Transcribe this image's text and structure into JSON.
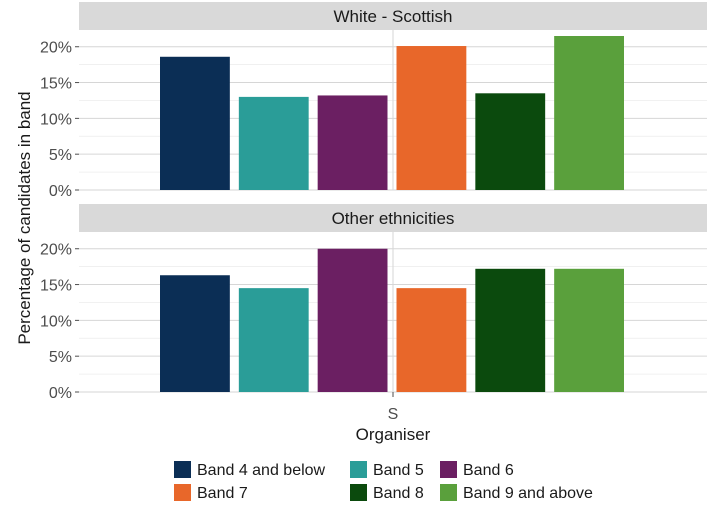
{
  "chart_data": {
    "type": "bar",
    "ylabel": "Percentage of candidates in band",
    "xlabel": "Organiser",
    "x_category": "S",
    "ylim": [
      0,
      0.215
    ],
    "y_ticks": [
      0,
      0.05,
      0.1,
      0.15,
      0.2
    ],
    "y_tick_labels": [
      "0%",
      "5%",
      "10%",
      "15%",
      "20%"
    ],
    "grid": true,
    "legend_position": "bottom",
    "series_names": [
      "Band 4 and below",
      "Band 5",
      "Band 6",
      "Band 7",
      "Band 8",
      "Band 9 and above"
    ],
    "colors": [
      "#0b2e55",
      "#2a9d98",
      "#6b1f62",
      "#e8672a",
      "#0b4a0d",
      "#5aa03c"
    ],
    "panels": [
      {
        "title": "White - Scottish",
        "values": [
          0.186,
          0.13,
          0.132,
          0.201,
          0.135,
          0.215
        ]
      },
      {
        "title": "Other ethnicities",
        "values": [
          0.163,
          0.145,
          0.2,
          0.145,
          0.172,
          0.172
        ]
      }
    ]
  }
}
